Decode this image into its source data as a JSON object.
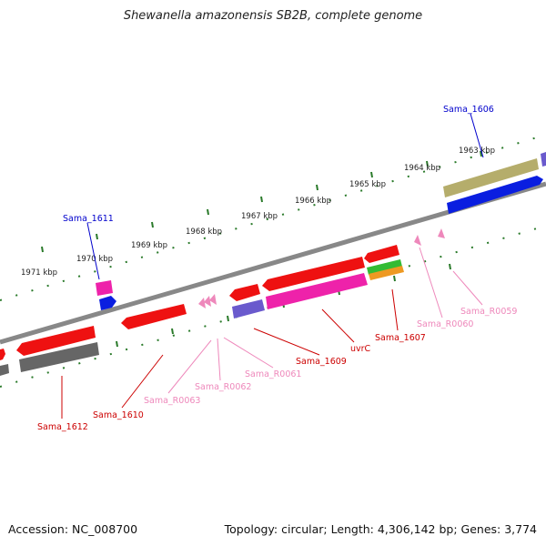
{
  "title": "Shewanella amazonensis SB2B, complete genome",
  "accession": "Accession: NC_008700",
  "topology": "Topology: circular; Length: 4,306,142 bp; Genes: 3,774",
  "colors": {
    "backbone": "#888888",
    "tick": "#2a7a2a",
    "blue_label": "#0000cc",
    "red_label": "#cc0000",
    "pink_label": "#ee88bb",
    "gene_red": "#ee1111",
    "gene_magenta": "#ee22aa",
    "gene_purple": "#6a5acd",
    "gene_gray": "#666666",
    "gene_blue": "#0a1ee0",
    "gene_olive": "#b5ad6b",
    "gene_green": "#33bb33",
    "gene_orange": "#ee9922"
  },
  "kbp_ticks": [
    "1963 kbp",
    "1964 kbp",
    "1965 kbp",
    "1966 kbp",
    "1967 kbp",
    "1968 kbp",
    "1969 kbp",
    "1970 kbp",
    "1971 kbp"
  ],
  "labels": {
    "sama_1606": "Sama_1606",
    "sama_1611": "Sama_1611",
    "sama_1612": "Sama_1612",
    "sama_1610": "Sama_1610",
    "sama_r0063": "Sama_R0063",
    "sama_r0062": "Sama_R0062",
    "sama_r0061": "Sama_R0061",
    "sama_1609": "Sama_1609",
    "uvrc": "uvrC",
    "sama_1607": "Sama_1607",
    "sama_r0060": "Sama_R0060",
    "sama_r0059": "Sama_R0059"
  }
}
